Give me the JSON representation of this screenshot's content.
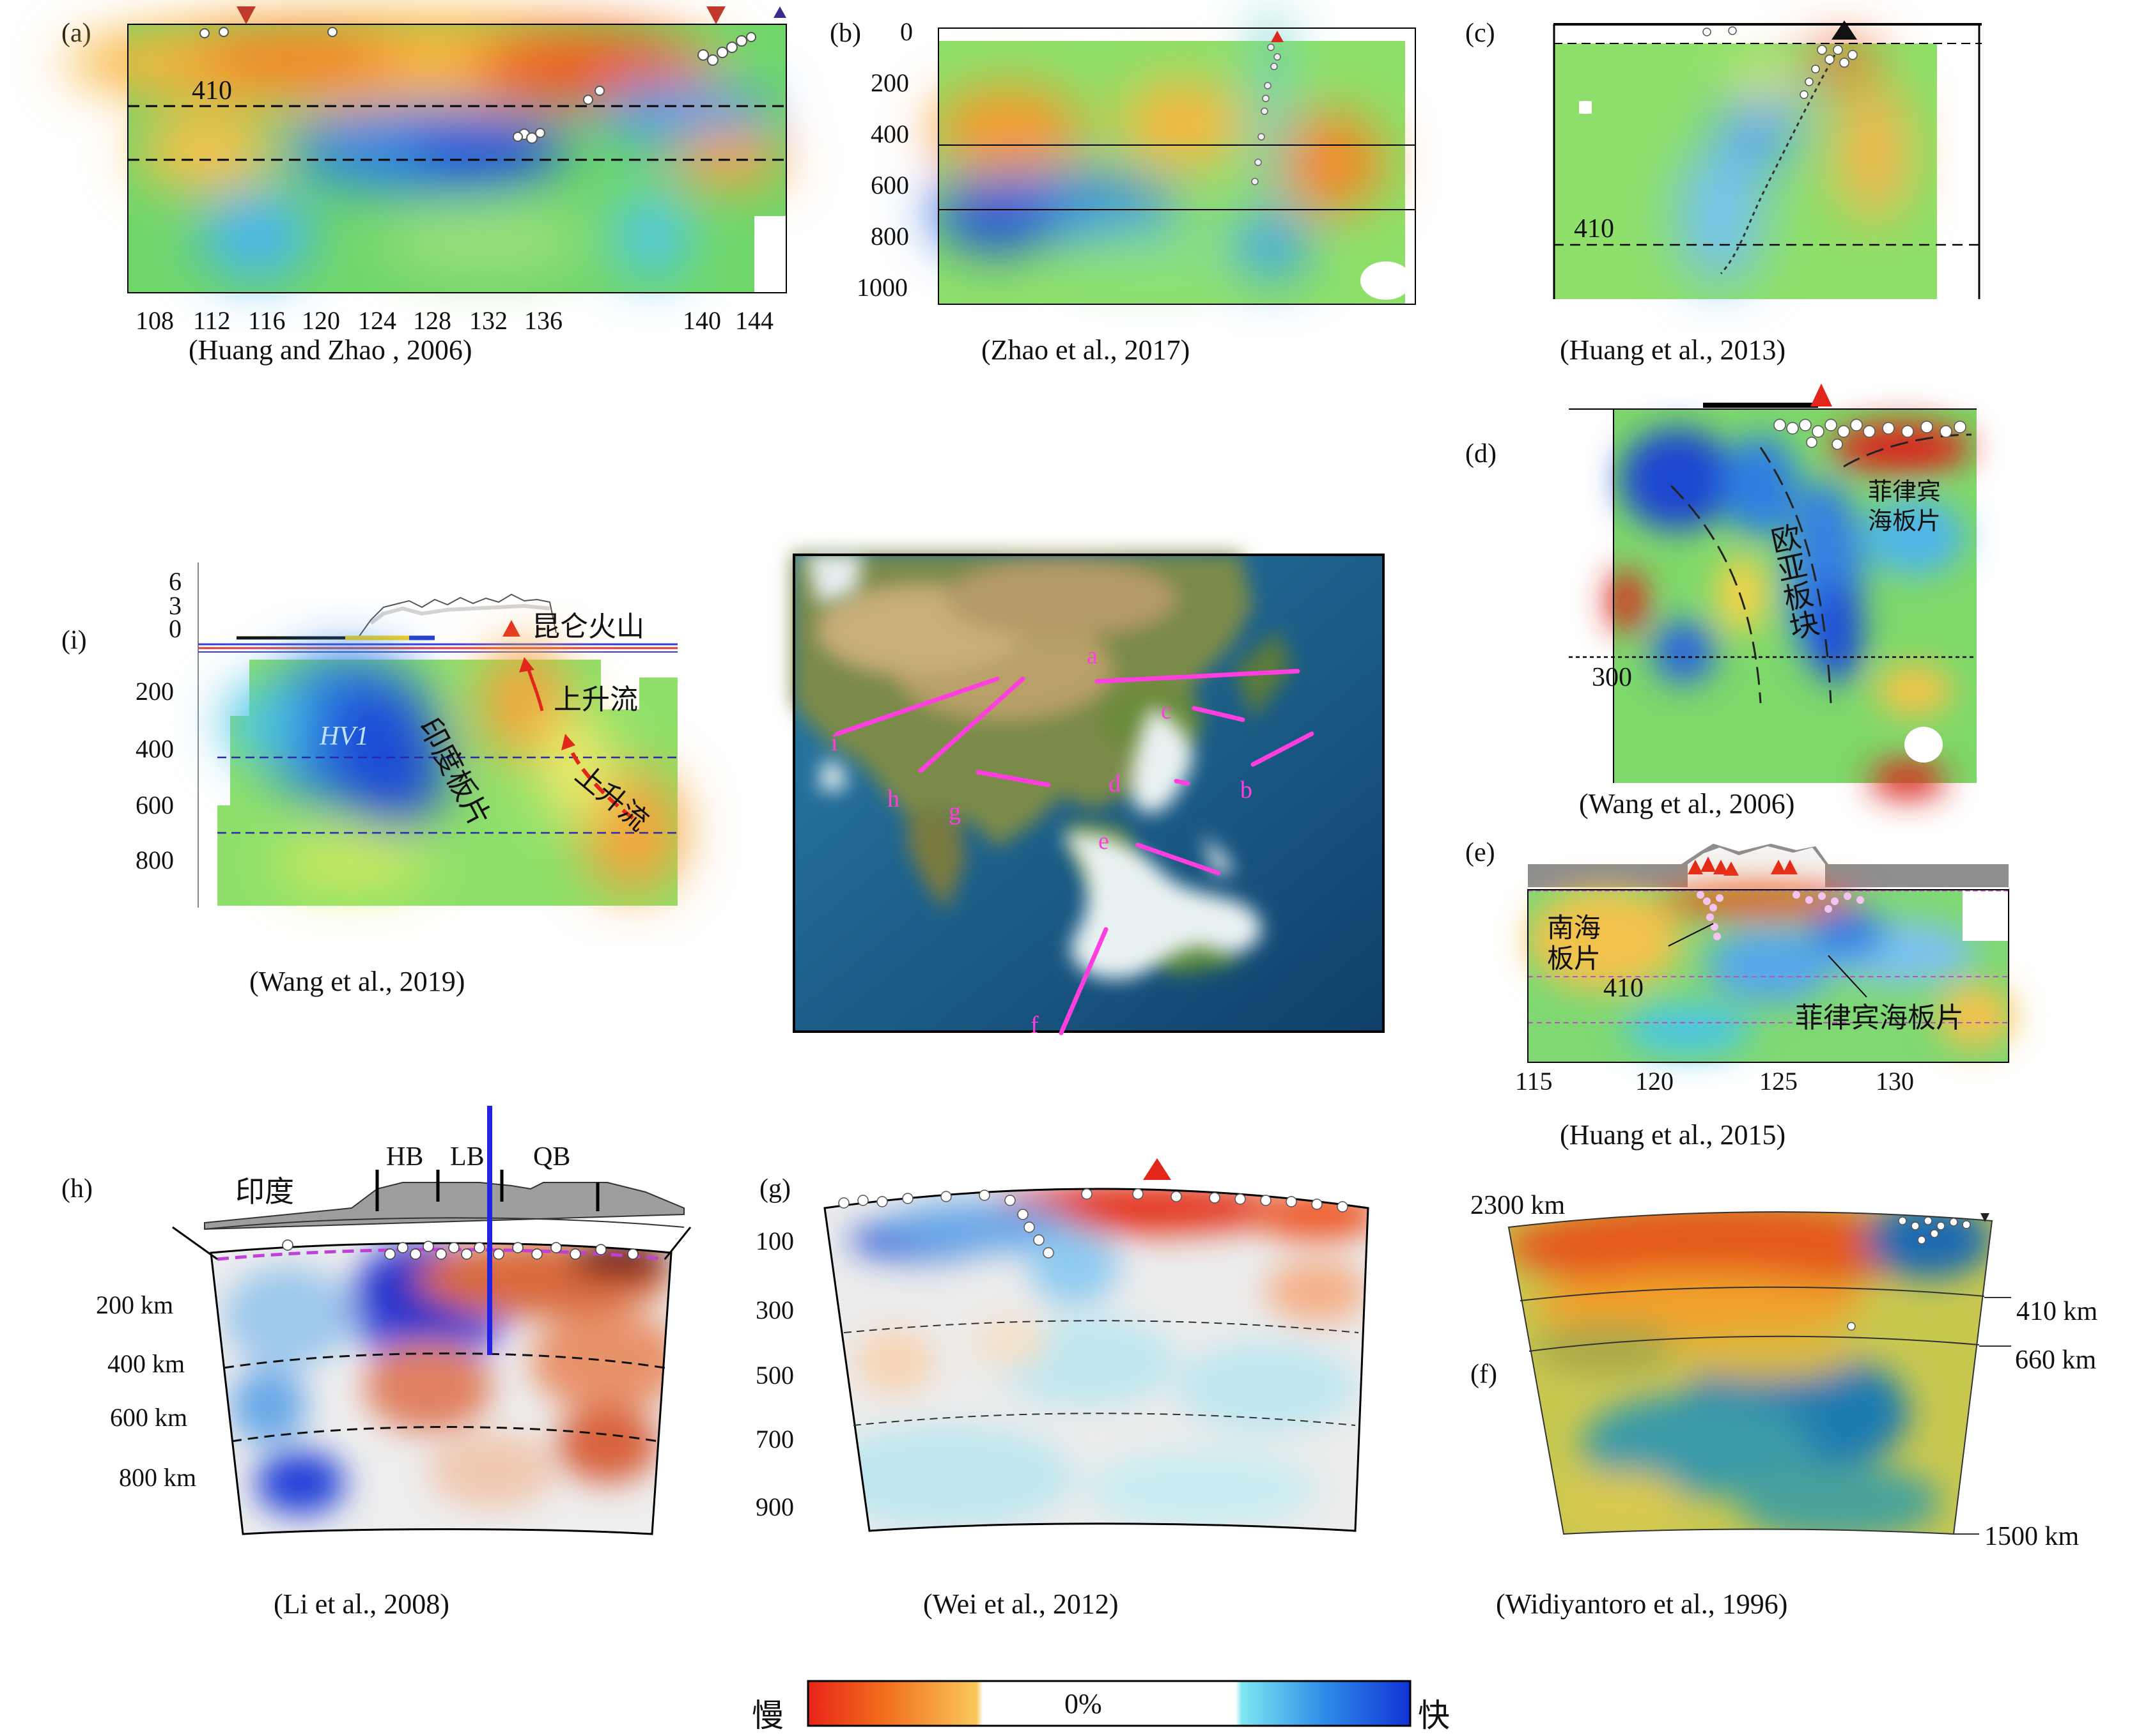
{
  "panels": {
    "a": {
      "letter": "(a)",
      "caption": "(Huang and Zhao , 2006)",
      "depth_label": "410",
      "x_ticks": [
        "108",
        "112",
        "116",
        "120",
        "124",
        "128",
        "132",
        "136",
        "140",
        "144"
      ]
    },
    "b": {
      "letter": "(b)",
      "caption": "(Zhao et al., 2017)",
      "y_ticks": [
        "0",
        "200",
        "400",
        "600",
        "800",
        "1000"
      ]
    },
    "c": {
      "letter": "(c)",
      "caption": "(Huang et al., 2013)",
      "depth_label": "410"
    },
    "d": {
      "letter": "(d)",
      "caption": "(Wang et al., 2006)",
      "depth_label": "300",
      "label_eurasia": "欧亚板块",
      "label_philippine_line1": "菲律宾",
      "label_philippine_line2": "海板片"
    },
    "e": {
      "letter": "(e)",
      "caption": "(Huang et al., 2015)",
      "depth_label": "410",
      "label_scs_line1": "南海",
      "label_scs_line2": "板片",
      "label_philippine": "菲律宾海板片",
      "x_ticks": [
        "115",
        "120",
        "125",
        "130"
      ]
    },
    "i": {
      "letter": "(i)",
      "caption": "(Wang et al., 2019)",
      "topo_ticks": [
        "6",
        "3",
        "0"
      ],
      "y_ticks": [
        "200",
        "400",
        "600",
        "800"
      ],
      "label_volcano": "昆仑火山",
      "label_upwelling_1": "上升流",
      "label_upwelling_2": "上升流",
      "label_hv1": "HV1",
      "label_indian_slab": "印度板片"
    },
    "map": {
      "profile_labels": [
        "a",
        "b",
        "c",
        "d",
        "e",
        "f",
        "g",
        "h",
        "i"
      ]
    },
    "h": {
      "letter": "(h)",
      "caption": "(Li et al., 2008)",
      "label_india": "印度",
      "label_hb": "HB",
      "label_lb": "LB",
      "label_qb": "QB",
      "y_ticks": [
        "200 km",
        "400 km",
        "600 km",
        "800 km"
      ]
    },
    "g": {
      "letter": "(g)",
      "caption": "(Wei et al., 2012)",
      "y_ticks": [
        "100",
        "300",
        "500",
        "700",
        "900"
      ]
    },
    "f": {
      "letter": "(f)",
      "caption": "(Widiyantoro et al., 1996)",
      "label_2300": "2300 km",
      "label_410": "410 km",
      "label_660": "660 km",
      "label_1500": "1500 km"
    }
  },
  "colorbar": {
    "left_label": "慢",
    "center_label": "0%",
    "right_label": "快",
    "colors": {
      "slow": "#e8241a",
      "mid": "#ffffff",
      "fast": "#1238d8"
    }
  }
}
